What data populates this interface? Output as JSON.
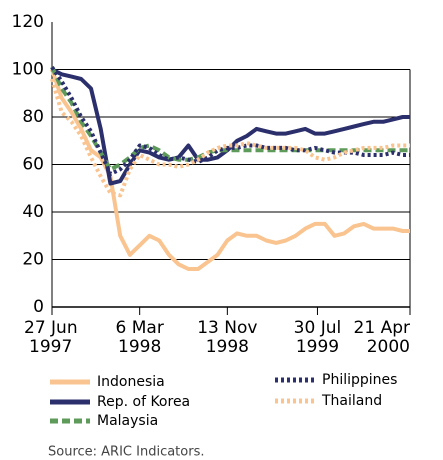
{
  "chart_data": {
    "type": "line",
    "source": "Source: ARIC Indicators.",
    "x": [
      "1997-06-27",
      "1997-07-25",
      "1997-08-22",
      "1997-09-19",
      "1997-10-17",
      "1997-11-14",
      "1997-12-12",
      "1998-01-09",
      "1998-02-06",
      "1998-03-06",
      "1998-04-03",
      "1998-05-01",
      "1998-05-29",
      "1998-06-26",
      "1998-07-24",
      "1998-08-21",
      "1998-09-18",
      "1998-10-16",
      "1998-11-13",
      "1998-12-11",
      "1999-01-08",
      "1999-02-05",
      "1999-03-05",
      "1999-04-02",
      "1999-04-30",
      "1999-05-28",
      "1999-06-25",
      "1999-07-23",
      "1999-08-20",
      "1999-09-17",
      "1999-10-15",
      "1999-11-12",
      "1999-12-10",
      "2000-01-07",
      "2000-02-04",
      "2000-03-03",
      "2000-03-31",
      "2000-04-21"
    ],
    "series": [
      {
        "name": "Indonesia",
        "color": "#f9c48f",
        "style": "solid",
        "values": [
          100,
          88,
          82,
          75,
          66,
          63,
          55,
          30,
          22,
          26,
          30,
          28,
          22,
          18,
          16,
          16,
          19,
          22,
          28,
          31,
          30,
          30,
          28,
          27,
          28,
          30,
          33,
          35,
          35,
          30,
          31,
          34,
          35,
          33,
          33,
          33,
          32,
          32
        ]
      },
      {
        "name": "Rep. of Korea",
        "color": "#2b2f6b",
        "style": "solid",
        "values": [
          100,
          98,
          97,
          96,
          92,
          75,
          52,
          53,
          60,
          66,
          65,
          63,
          62,
          63,
          68,
          62,
          62,
          63,
          66,
          70,
          72,
          75,
          74,
          73,
          73,
          74,
          75,
          73,
          73,
          74,
          75,
          76,
          77,
          78,
          78,
          79,
          80,
          80
        ]
      },
      {
        "name": "Malaysia",
        "color": "#5e9b5a",
        "style": "dashed",
        "values": [
          101,
          92,
          86,
          78,
          72,
          65,
          58,
          60,
          63,
          67,
          68,
          66,
          63,
          62,
          62,
          63,
          65,
          66,
          66,
          66,
          66,
          66,
          66,
          66,
          66,
          66,
          66,
          66,
          66,
          66,
          66,
          66,
          66,
          66,
          66,
          66,
          66,
          66
        ]
      },
      {
        "name": "Philippines",
        "color": "#2b2f6b",
        "style": "dotted",
        "values": [
          101,
          95,
          88,
          80,
          74,
          65,
          56,
          58,
          62,
          68,
          67,
          64,
          62,
          63,
          62,
          61,
          63,
          66,
          67,
          67,
          68,
          68,
          67,
          67,
          67,
          66,
          66,
          67,
          66,
          65,
          65,
          65,
          64,
          64,
          64,
          65,
          64,
          64
        ]
      },
      {
        "name": "Thailand",
        "color": "#f9c48f",
        "style": "dotted",
        "values": [
          96,
          82,
          78,
          72,
          63,
          55,
          48,
          47,
          58,
          64,
          62,
          60,
          60,
          59,
          60,
          62,
          65,
          67,
          68,
          68,
          69,
          68,
          67,
          67,
          67,
          67,
          66,
          63,
          62,
          63,
          65,
          66,
          67,
          67,
          67,
          68,
          68,
          68
        ]
      }
    ],
    "xticks": [
      {
        "value": "1997-06-27",
        "label": [
          "27 Jun",
          "1997"
        ]
      },
      {
        "value": "1998-03-06",
        "label": [
          "6 Mar",
          "1998"
        ]
      },
      {
        "value": "1998-11-13",
        "label": [
          "13 Nov",
          "1998"
        ]
      },
      {
        "value": "1999-07-30",
        "label": [
          "30 Jul",
          "1999"
        ]
      },
      {
        "value": "2000-04-21",
        "label": [
          "21 Apr",
          "2000"
        ]
      }
    ],
    "ylim": [
      0,
      120
    ],
    "yticks": [
      0,
      20,
      40,
      60,
      80,
      100,
      120
    ],
    "grid": true
  }
}
